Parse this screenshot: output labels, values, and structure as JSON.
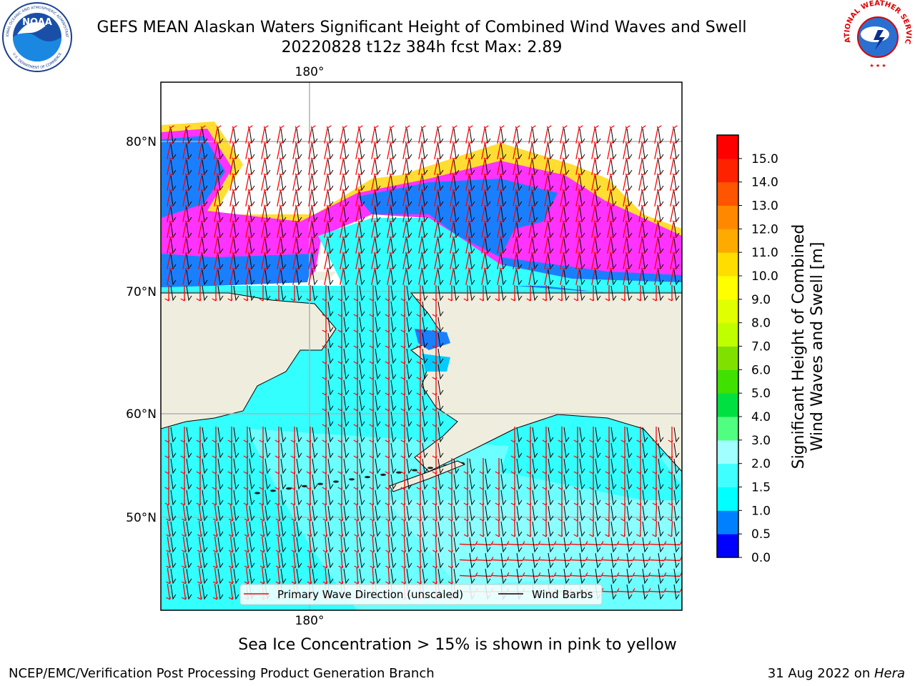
{
  "header": {
    "title_line1": "GEFS MEAN Alaskan Waters Significant Height of Combined Wind Waves and Swell",
    "title_line2": "20220828 t12z 384h fcst   Max: 2.89"
  },
  "logos": {
    "noaa_text": "NOAA",
    "noaa_ring_text": "NATIONAL OCEANIC AND ATMOSPHERIC ADMINISTRATION",
    "noaa_ring_bottom": "U.S. DEPARTMENT OF COMMERCE",
    "nws_ring_text": "NATIONAL WEATHER SERVICE"
  },
  "map": {
    "lon_labels": [
      "180°"
    ],
    "lat_labels": [
      "80°N",
      "70°N",
      "60°N",
      "50°N"
    ],
    "colors": {
      "land": "#efedde",
      "ocean": "#33ffff",
      "ocean_light": "#99ffff",
      "ocean_mid": "#00ccff",
      "ice_blue": "#1a7fff",
      "ice_pink": "#ff33ff",
      "ice_yellow": "#ffdd33",
      "ice_orange": "#ffaa33",
      "grid": "#b0b0b0",
      "wave_arrow": "#ff0000",
      "barb": "#000000"
    },
    "legend": {
      "primary_wave": "Primary Wave Direction (unscaled)",
      "wind_barbs": "Wind Barbs"
    }
  },
  "colorbar": {
    "label_line1": "Significant Height of Combined",
    "label_line2": "Wind Waves and Swell [m]",
    "ticks": [
      "0.0",
      "0.5",
      "1.0",
      "1.5",
      "2.0",
      "3.0",
      "4.0",
      "5.0",
      "6.0",
      "7.0",
      "8.0",
      "9.0",
      "10.0",
      "11.0",
      "12.0",
      "13.0",
      "14.0",
      "15.0"
    ],
    "colors": [
      "#0000ff",
      "#0080ff",
      "#00ffff",
      "#40ffff",
      "#a0ffff",
      "#50ff80",
      "#00e040",
      "#40e000",
      "#80e000",
      "#c0ff00",
      "#e0ff00",
      "#ffff00",
      "#ffdd00",
      "#ffaa00",
      "#ff8800",
      "#ff5500",
      "#ff2200",
      "#ff0000"
    ]
  },
  "note": "Sea Ice Concentration > 15% is shown in pink to yellow",
  "footer": {
    "left": "NCEP/EMC/Verification Post Processing Product Generation Branch",
    "right_date": "31 Aug 2022 on ",
    "right_host": "Hera"
  }
}
